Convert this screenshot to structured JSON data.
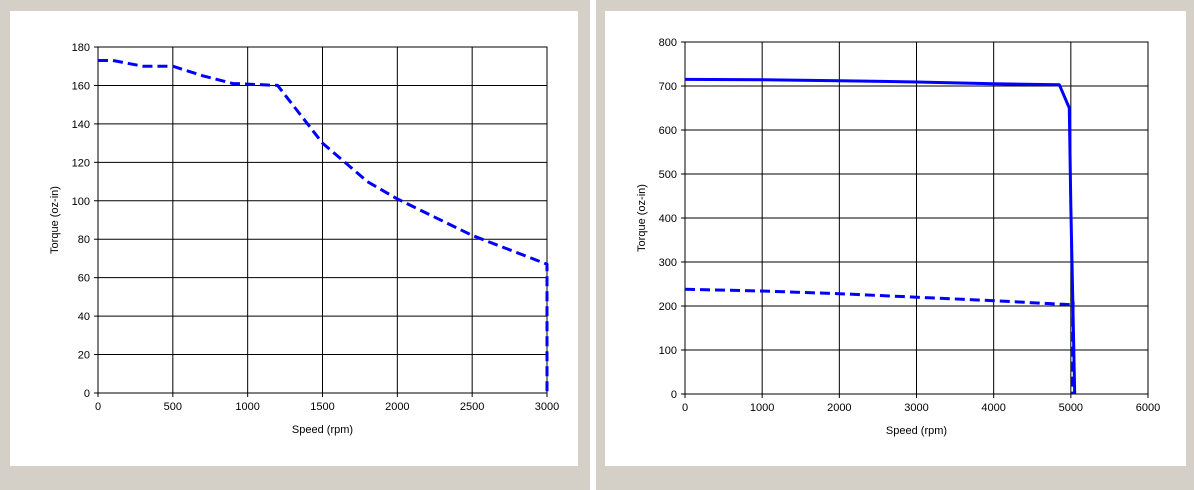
{
  "chart_data": [
    {
      "type": "line",
      "xlabel": "Speed (rpm)",
      "ylabel": "Torque (oz-in)",
      "xlim": [
        0,
        3000
      ],
      "ylim": [
        0,
        180
      ],
      "x_ticks": [
        0,
        500,
        1000,
        1500,
        2000,
        2500,
        3000
      ],
      "y_ticks": [
        0,
        20,
        40,
        60,
        80,
        100,
        120,
        140,
        160,
        180
      ],
      "grid": true,
      "series": [
        {
          "style": "dashed",
          "color": "#0000ff",
          "points": [
            [
              0,
              173
            ],
            [
              100,
              173
            ],
            [
              300,
              170
            ],
            [
              500,
              170
            ],
            [
              700,
              165
            ],
            [
              900,
              161
            ],
            [
              1200,
              160
            ],
            [
              1300,
              150
            ],
            [
              1500,
              130
            ],
            [
              1800,
              110
            ],
            [
              2000,
              101
            ],
            [
              2500,
              82
            ],
            [
              3000,
              67
            ],
            [
              3000,
              0
            ]
          ]
        }
      ]
    },
    {
      "type": "line",
      "xlabel": "Speed (rpm)",
      "ylabel": "Torque (oz-in)",
      "xlim": [
        0,
        6000
      ],
      "ylim": [
        0,
        800
      ],
      "x_ticks": [
        0,
        1000,
        2000,
        3000,
        4000,
        5000,
        6000
      ],
      "y_ticks": [
        0,
        100,
        200,
        300,
        400,
        500,
        600,
        700,
        800
      ],
      "grid": true,
      "series": [
        {
          "style": "solid",
          "color": "#0000ff",
          "points": [
            [
              0,
              715
            ],
            [
              1000,
              714
            ],
            [
              2000,
              712
            ],
            [
              3000,
              709
            ],
            [
              4000,
              705
            ],
            [
              4850,
              703
            ],
            [
              4980,
              650
            ],
            [
              5000,
              430
            ],
            [
              5050,
              0
            ]
          ]
        },
        {
          "style": "dashed",
          "color": "#0000ff",
          "points": [
            [
              0,
              238
            ],
            [
              1000,
              234
            ],
            [
              2000,
              228
            ],
            [
              3000,
              220
            ],
            [
              4000,
              212
            ],
            [
              5000,
              203
            ],
            [
              5030,
              210
            ],
            [
              5020,
              0
            ]
          ]
        }
      ]
    }
  ]
}
